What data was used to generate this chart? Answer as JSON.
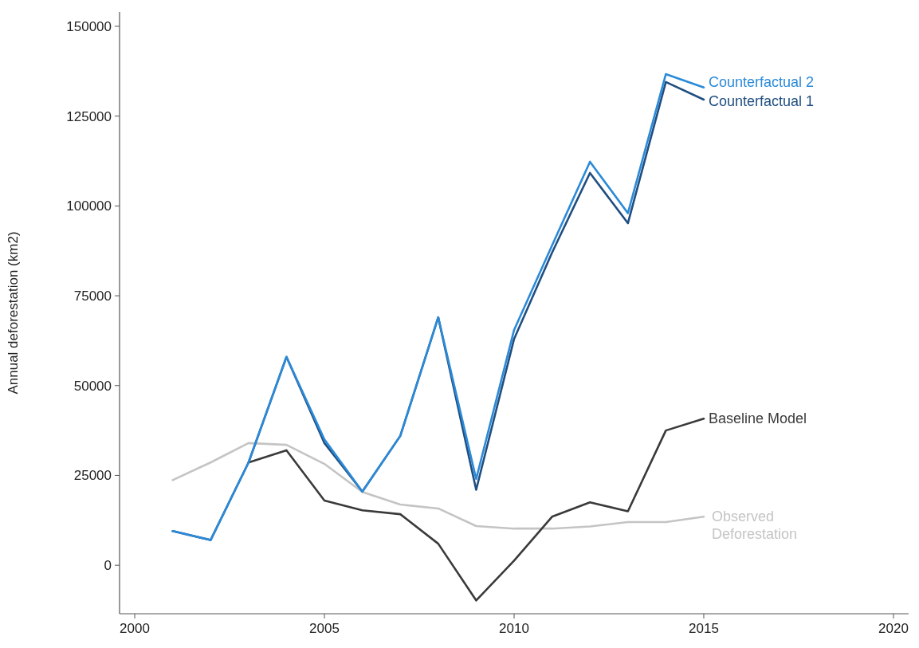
{
  "chart_data": {
    "type": "line",
    "ylabel": "Annual deforestation (km2)",
    "x": [
      2001,
      2002,
      2003,
      2004,
      2005,
      2006,
      2007,
      2008,
      2009,
      2010,
      2011,
      2012,
      2013,
      2014,
      2015
    ],
    "series": [
      {
        "name": "Observed Deforestation",
        "color": "#c4c4c4",
        "values": [
          23700,
          28600,
          34000,
          33500,
          28200,
          20400,
          16900,
          15800,
          10900,
          10200,
          10200,
          10800,
          12000,
          12000,
          13500
        ]
      },
      {
        "name": "Baseline Model",
        "color": "#3a3a3a",
        "values": [
          null,
          null,
          28600,
          32000,
          18000,
          15300,
          14200,
          6000,
          -9800,
          1300,
          13500,
          17500,
          15000,
          37500,
          40800
        ]
      },
      {
        "name": "Counterfactual 1",
        "color": "#1f4e80",
        "values": [
          9500,
          7000,
          28600,
          58000,
          34000,
          20500,
          36000,
          69000,
          21000,
          63000,
          87000,
          109200,
          95200,
          134500,
          129600
        ]
      },
      {
        "name": "Counterfactual 2",
        "color": "#2b8ad8",
        "values": [
          9500,
          7000,
          28600,
          58000,
          35000,
          20500,
          36000,
          69000,
          24000,
          65500,
          89000,
          112300,
          98000,
          136700,
          133000
        ]
      }
    ],
    "xlim": [
      1999.6,
      2020.4
    ],
    "xticks": [
      2000,
      2005,
      2010,
      2015,
      2020
    ],
    "ylim": [
      -13500,
      154000
    ],
    "yticks": [
      0,
      25000,
      50000,
      75000,
      100000,
      125000,
      150000
    ],
    "grid": false,
    "legend": false,
    "marker": "none",
    "line_style": "solid"
  }
}
